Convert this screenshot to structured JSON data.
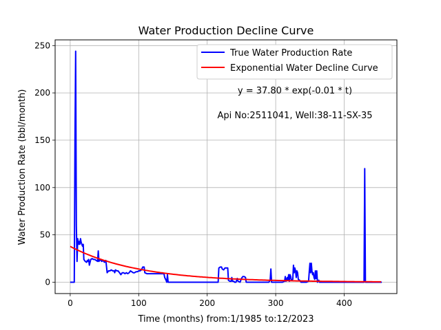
{
  "chart_data": {
    "type": "line",
    "title": "Water Production Decline Curve",
    "xlabel": "Time (months) from:1/1985 to:12/2023",
    "ylabel": "Water Production Rate (bbl/month)",
    "xlim": [
      -22,
      477
    ],
    "ylim": [
      -12,
      256
    ],
    "xticks": [
      0,
      100,
      200,
      300,
      400
    ],
    "yticks": [
      0,
      50,
      100,
      150,
      200,
      250
    ],
    "grid": true,
    "legend_position": "top-right",
    "annotations": [
      "y = 37.80 * exp(-0.01 * t)",
      "Api No:2511041, Well:38-11-SX-35"
    ],
    "series": [
      {
        "name": "True Water Production Rate",
        "color": "#0000ff",
        "style": "solid",
        "points": [
          [
            0,
            0
          ],
          [
            6,
            0
          ],
          [
            7,
            150
          ],
          [
            8,
            244
          ],
          [
            9,
            60
          ],
          [
            10,
            22
          ],
          [
            11,
            46
          ],
          [
            12,
            40
          ],
          [
            13,
            43
          ],
          [
            14,
            40
          ],
          [
            15,
            46
          ],
          [
            16,
            42
          ],
          [
            17,
            40
          ],
          [
            18,
            38
          ],
          [
            19,
            40
          ],
          [
            20,
            24
          ],
          [
            22,
            22
          ],
          [
            24,
            21
          ],
          [
            25,
            23
          ],
          [
            26,
            22
          ],
          [
            27,
            24
          ],
          [
            28,
            18
          ],
          [
            30,
            24
          ],
          [
            32,
            25
          ],
          [
            34,
            24
          ],
          [
            36,
            24
          ],
          [
            38,
            23
          ],
          [
            40,
            22
          ],
          [
            41,
            33
          ],
          [
            42,
            22
          ],
          [
            44,
            24
          ],
          [
            46,
            22
          ],
          [
            48,
            23
          ],
          [
            50,
            21
          ],
          [
            52,
            23
          ],
          [
            53,
            17
          ],
          [
            54,
            10
          ],
          [
            56,
            12
          ],
          [
            58,
            12
          ],
          [
            60,
            13
          ],
          [
            62,
            12
          ],
          [
            64,
            12
          ],
          [
            65,
            10
          ],
          [
            66,
            13
          ],
          [
            68,
            12
          ],
          [
            70,
            12
          ],
          [
            72,
            10
          ],
          [
            74,
            8
          ],
          [
            76,
            10
          ],
          [
            78,
            10
          ],
          [
            80,
            9
          ],
          [
            82,
            10
          ],
          [
            84,
            9
          ],
          [
            86,
            10
          ],
          [
            88,
            12
          ],
          [
            90,
            11
          ],
          [
            92,
            10
          ],
          [
            94,
            10
          ],
          [
            96,
            11
          ],
          [
            98,
            11
          ],
          [
            100,
            12
          ],
          [
            102,
            12
          ],
          [
            104,
            13
          ],
          [
            106,
            16
          ],
          [
            108,
            16
          ],
          [
            109,
            10
          ],
          [
            112,
            9
          ],
          [
            115,
            9
          ],
          [
            120,
            9
          ],
          [
            125,
            9
          ],
          [
            130,
            9
          ],
          [
            135,
            9
          ],
          [
            137,
            9
          ],
          [
            138,
            5
          ],
          [
            140,
            2
          ],
          [
            141,
            0
          ],
          [
            142,
            8
          ],
          [
            143,
            0
          ],
          [
            150,
            0
          ],
          [
            170,
            0
          ],
          [
            190,
            0
          ],
          [
            210,
            0
          ],
          [
            216,
            0
          ],
          [
            217,
            15
          ],
          [
            219,
            16
          ],
          [
            221,
            16
          ],
          [
            222,
            14
          ],
          [
            224,
            13
          ],
          [
            226,
            15
          ],
          [
            228,
            15
          ],
          [
            230,
            15
          ],
          [
            231,
            2
          ],
          [
            233,
            1
          ],
          [
            235,
            1
          ],
          [
            236,
            5
          ],
          [
            237,
            1
          ],
          [
            239,
            1
          ],
          [
            240,
            0
          ],
          [
            242,
            0
          ],
          [
            244,
            4
          ],
          [
            245,
            1
          ],
          [
            248,
            0
          ],
          [
            250,
            4
          ],
          [
            252,
            6
          ],
          [
            254,
            6
          ],
          [
            256,
            5
          ],
          [
            257,
            0
          ],
          [
            262,
            0
          ],
          [
            270,
            0
          ],
          [
            280,
            0
          ],
          [
            290,
            0
          ],
          [
            292,
            2
          ],
          [
            293,
            14
          ],
          [
            294,
            0
          ],
          [
            300,
            0
          ],
          [
            305,
            0
          ],
          [
            310,
            0
          ],
          [
            313,
            1
          ],
          [
            314,
            6
          ],
          [
            315,
            1
          ],
          [
            317,
            5
          ],
          [
            318,
            2
          ],
          [
            319,
            8
          ],
          [
            320,
            1
          ],
          [
            321,
            8
          ],
          [
            322,
            6
          ],
          [
            323,
            2
          ],
          [
            325,
            3
          ],
          [
            326,
            18
          ],
          [
            327,
            10
          ],
          [
            328,
            15
          ],
          [
            329,
            12
          ],
          [
            330,
            5
          ],
          [
            331,
            12
          ],
          [
            332,
            10
          ],
          [
            333,
            3
          ],
          [
            335,
            2
          ],
          [
            337,
            0
          ],
          [
            340,
            0
          ],
          [
            345,
            0
          ],
          [
            348,
            1
          ],
          [
            349,
            11
          ],
          [
            350,
            20
          ],
          [
            351,
            10
          ],
          [
            352,
            20
          ],
          [
            353,
            12
          ],
          [
            354,
            8
          ],
          [
            355,
            10
          ],
          [
            356,
            5
          ],
          [
            357,
            3
          ],
          [
            358,
            12
          ],
          [
            359,
            4
          ],
          [
            360,
            12
          ],
          [
            361,
            0
          ],
          [
            363,
            2
          ],
          [
            364,
            0
          ],
          [
            370,
            0
          ],
          [
            380,
            0
          ],
          [
            390,
            0
          ],
          [
            400,
            0
          ],
          [
            410,
            0
          ],
          [
            420,
            0
          ],
          [
            428,
            0
          ],
          [
            429,
            0
          ],
          [
            430,
            120
          ],
          [
            431,
            0
          ],
          [
            433,
            0
          ],
          [
            440,
            0
          ],
          [
            450,
            0
          ],
          [
            455,
            0
          ]
        ]
      },
      {
        "name": "Exponential Water Decline Curve",
        "color": "#ff0000",
        "style": "solid",
        "model": {
          "a": 37.8,
          "b": 0.01,
          "t_start": 0,
          "t_end": 455
        }
      }
    ]
  }
}
